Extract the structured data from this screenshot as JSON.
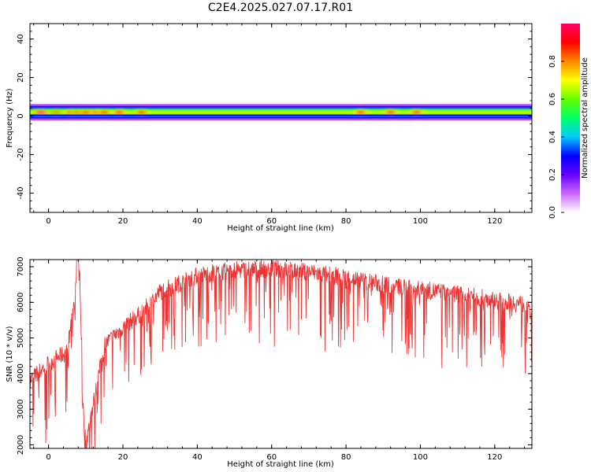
{
  "figure": {
    "title": "C2E4.2025.027.07.17.R01"
  },
  "chart_data": [
    {
      "type": "heatmap",
      "title": "C2E4.2025.027.07.17.R01",
      "xlabel": "Height of straight line (km)",
      "ylabel": "Frequency (Hz)",
      "xlim": [
        -5,
        130
      ],
      "ylim": [
        -50,
        48
      ],
      "x_ticks": [
        0,
        20,
        40,
        60,
        80,
        100,
        120
      ],
      "y_ticks": [
        -40,
        -20,
        0,
        20,
        40
      ],
      "colorbar": {
        "label": "Normalized spectral amplitude",
        "range": [
          0,
          1
        ],
        "ticks": [
          "0.0",
          "0.2",
          "0.4",
          "0.6",
          "0.8"
        ],
        "colors": [
          "#ffffff",
          "#cc66ff",
          "#6600ff",
          "#0000ff",
          "#00ccff",
          "#00ff66",
          "#66ff00",
          "#ffff00",
          "#ff8800",
          "#ff0000",
          "#ff0066"
        ]
      },
      "band": {
        "center_hz": 2,
        "half_width_hz": 2.5,
        "level": 0.55
      },
      "hotspots": [
        {
          "x": -2,
          "level": 1.0
        },
        {
          "x": 2,
          "level": 0.8
        },
        {
          "x": 6,
          "level": 0.95
        },
        {
          "x": 8,
          "level": 0.85
        },
        {
          "x": 10,
          "level": 0.9
        },
        {
          "x": 13,
          "level": 0.95
        },
        {
          "x": 15,
          "level": 0.9
        },
        {
          "x": 19,
          "level": 0.95
        },
        {
          "x": 25,
          "level": 0.9
        },
        {
          "x": 84,
          "level": 0.95
        },
        {
          "x": 92,
          "level": 0.95
        },
        {
          "x": 99,
          "level": 0.95
        }
      ],
      "grid": false
    },
    {
      "type": "line",
      "xlabel": "Height of straight line (km)",
      "ylabel": "SNR (10 * v/v)",
      "xlim": [
        -5,
        130
      ],
      "ylim": [
        1900,
        7200
      ],
      "x_ticks": [
        0,
        20,
        40,
        60,
        80,
        100,
        120
      ],
      "y_ticks": [
        2000,
        3000,
        4000,
        5000,
        6000,
        7000
      ],
      "color": "#ee3333",
      "x": [
        -5,
        0,
        5,
        8,
        9,
        10,
        15,
        20,
        25,
        30,
        40,
        50,
        60,
        70,
        80,
        90,
        100,
        110,
        120,
        128,
        130
      ],
      "y": [
        3800,
        4300,
        4600,
        6900,
        3500,
        2000,
        4800,
        5300,
        5700,
        6300,
        6750,
        6900,
        6950,
        6850,
        6700,
        6500,
        6350,
        6250,
        6050,
        5950,
        5600
      ],
      "grid": false
    }
  ]
}
